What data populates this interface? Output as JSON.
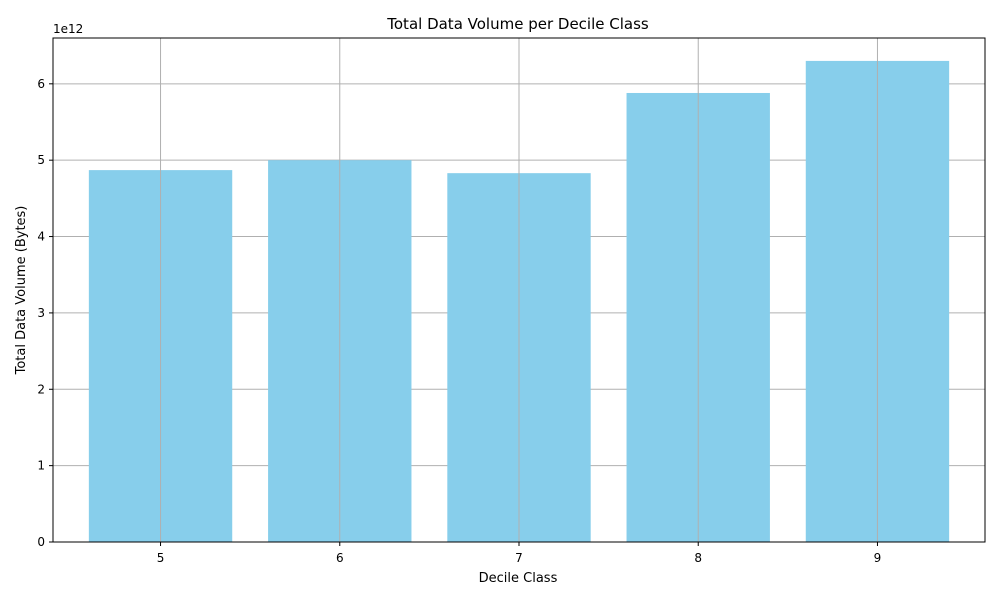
{
  "chart_data": {
    "type": "bar",
    "title": "Total Data Volume per Decile Class",
    "xlabel": "Decile Class",
    "ylabel": "Total Data Volume (Bytes)",
    "offset_label": "1e12",
    "categories": [
      "5",
      "6",
      "7",
      "8",
      "9"
    ],
    "values": [
      4870000000000.0,
      5000000000000.0,
      4830000000000.0,
      5880000000000.0,
      6300000000000.0
    ],
    "ylim": [
      0,
      6600000000000.0
    ],
    "yticks": [
      0,
      1000000000000.0,
      2000000000000.0,
      3000000000000.0,
      4000000000000.0,
      5000000000000.0,
      6000000000000.0
    ],
    "ytick_labels": [
      "0",
      "1",
      "2",
      "3",
      "4",
      "5",
      "6"
    ],
    "grid": true,
    "bar_color": "#87ceeb",
    "grid_color": "#b0b0b0"
  }
}
